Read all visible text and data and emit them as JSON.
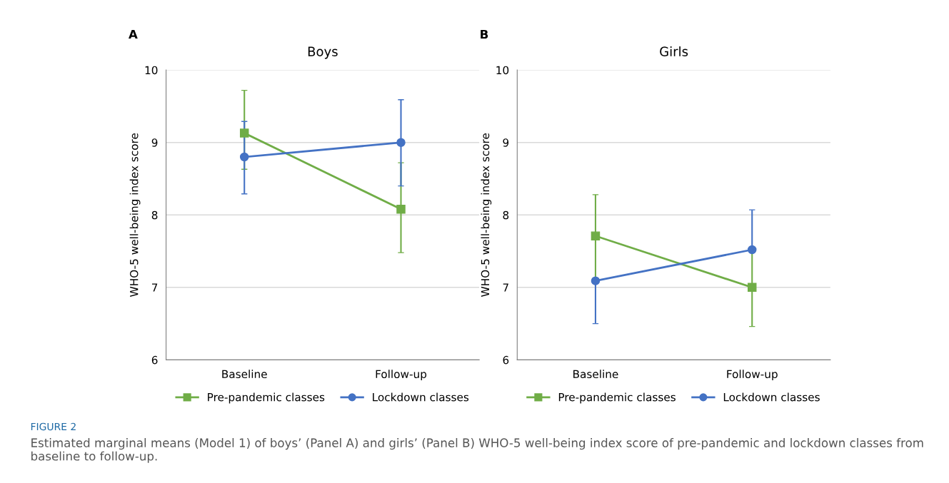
{
  "chart_data": [
    {
      "type": "line",
      "title": "Boys",
      "ylabel": "WHO-5 well-being index score",
      "categories": [
        "Baseline",
        "Follow-up"
      ],
      "ylim": [
        6,
        10
      ],
      "yticks": [
        6,
        7,
        8,
        9,
        10
      ],
      "grid": "y",
      "legend": "bottom",
      "line_style": "solid",
      "annotations": [
        "A"
      ],
      "series": [
        {
          "name": "Pre-pandemic classes",
          "color": "#70ad47",
          "marker": "square",
          "values": [
            9.13,
            8.08
          ],
          "errors": [
            [
              8.63,
              9.72
            ],
            [
              7.48,
              8.72
            ]
          ]
        },
        {
          "name": "Lockdown classes",
          "color": "#4472c4",
          "marker": "circle",
          "values": [
            8.8,
            9.0
          ],
          "errors": [
            [
              8.29,
              9.29
            ],
            [
              8.4,
              9.59
            ]
          ]
        }
      ]
    },
    {
      "type": "line",
      "title": "Girls",
      "ylabel": "WHO-5 well-being index score",
      "categories": [
        "Baseline",
        "Follow-up"
      ],
      "ylim": [
        6,
        10
      ],
      "yticks": [
        6,
        7,
        8,
        9,
        10
      ],
      "grid": "y",
      "legend": "bottom",
      "line_style": "solid",
      "annotations": [
        "B",
        "FIGURE 2",
        "Estimated marginal means (Model 1) of boys’ (Panel A) and girls’ (Panel B) WHO-5 well-being index score of pre-pandemic and lockdown classes from baseline to follow-up."
      ],
      "series": [
        {
          "name": "Pre-pandemic classes",
          "color": "#70ad47",
          "marker": "square",
          "values": [
            7.71,
            7.0
          ],
          "errors": [
            [
              7.13,
              8.28
            ],
            [
              6.46,
              7.54
            ]
          ]
        },
        {
          "name": "Lockdown classes",
          "color": "#4472c4",
          "marker": "circle",
          "values": [
            7.09,
            7.52
          ],
          "errors": [
            [
              6.5,
              7.09
            ],
            [
              7.52,
              8.07
            ]
          ]
        }
      ]
    }
  ]
}
